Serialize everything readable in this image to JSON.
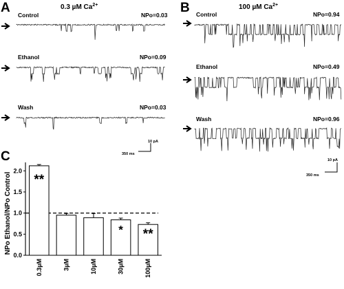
{
  "figure": {
    "panels": [
      {
        "letter": "A",
        "title_text": "0.3 µM Ca",
        "title_sup": "2+",
        "traces": [
          {
            "label": "Control",
            "npo": "NPo=0.03"
          },
          {
            "label": "Ethanol",
            "npo": "NPo=0.09"
          },
          {
            "label": "Wash",
            "npo": "NPo=0.03"
          }
        ],
        "scale_current": "10 pA",
        "scale_time": "350 ms"
      },
      {
        "letter": "B",
        "title_text": "100 µM Ca",
        "title_sup": "2+",
        "traces": [
          {
            "label": "Control",
            "npo": "NPo=0.94"
          },
          {
            "label": "Ethanol",
            "npo": "NPo=0.49"
          },
          {
            "label": "Wash",
            "npo": "NPo=0.96"
          }
        ],
        "scale_current": "10 pA",
        "scale_time": "350 ms"
      }
    ],
    "panel_c_letter": "C"
  },
  "chart_data": {
    "type": "bar",
    "title": "",
    "xlabel": "",
    "ylabel": "NPo Ethanol/NPo Control",
    "ylim": [
      0,
      2.2
    ],
    "yticks": [
      "0.0",
      "0.5",
      "1.0",
      "1.5",
      "2.0"
    ],
    "reference_line": 1.0,
    "categories": [
      "0.3µM",
      "3µM",
      "10µM",
      "30µM",
      "100µM"
    ],
    "values": [
      2.12,
      0.95,
      0.89,
      0.84,
      0.73
    ],
    "errors": [
      0.03,
      0.04,
      0.1,
      0.04,
      0.04
    ],
    "significance": [
      "**",
      "",
      "",
      "*",
      "**"
    ]
  }
}
